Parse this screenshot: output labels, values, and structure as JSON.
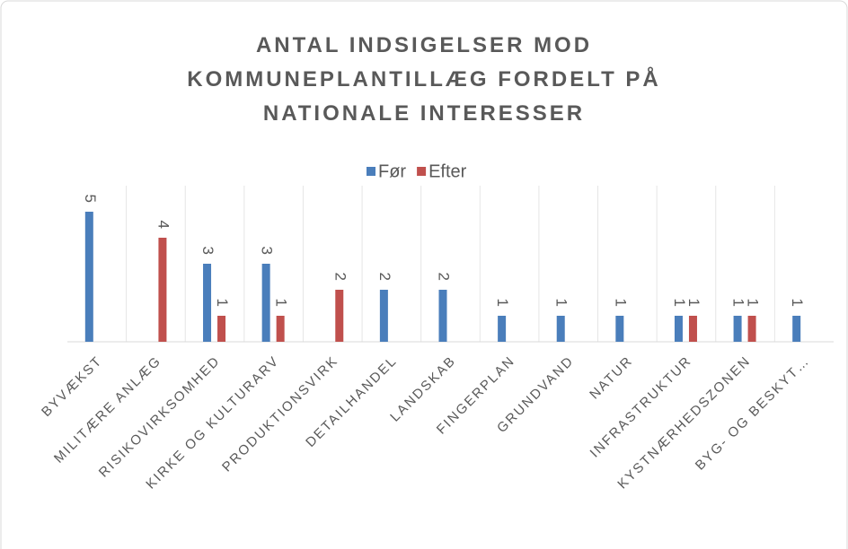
{
  "chart_data": {
    "type": "bar",
    "title": "ANTAL INDSIGELSER MOD KOMMUNEPLANTILLÆG FORDELT PÅ NATIONALE INTERESSER",
    "categories": [
      "BYVÆKST",
      "MILITÆRE ANLÆG",
      "RISIKOVIRKSOMHED",
      "KIRKE OG KULTURARV",
      "PRODUKTIONSVIRK",
      "DETAILHANDEL",
      "LANDSKAB",
      "FINGERPLAN",
      "GRUNDVAND",
      "NATUR",
      "INFRASTRUKTUR",
      "KYSTNÆRHEDSZONEN",
      "BYG- OG BESKYT…"
    ],
    "series": [
      {
        "name": "Før",
        "color": "#4a7ebb",
        "values": [
          5,
          null,
          3,
          3,
          null,
          2,
          2,
          1,
          1,
          1,
          1,
          1,
          1
        ]
      },
      {
        "name": "Efter",
        "color": "#c0504d",
        "values": [
          null,
          4,
          1,
          1,
          2,
          null,
          null,
          null,
          null,
          null,
          1,
          1,
          null
        ]
      }
    ],
    "ylim": [
      0,
      6
    ],
    "legend": "top"
  }
}
